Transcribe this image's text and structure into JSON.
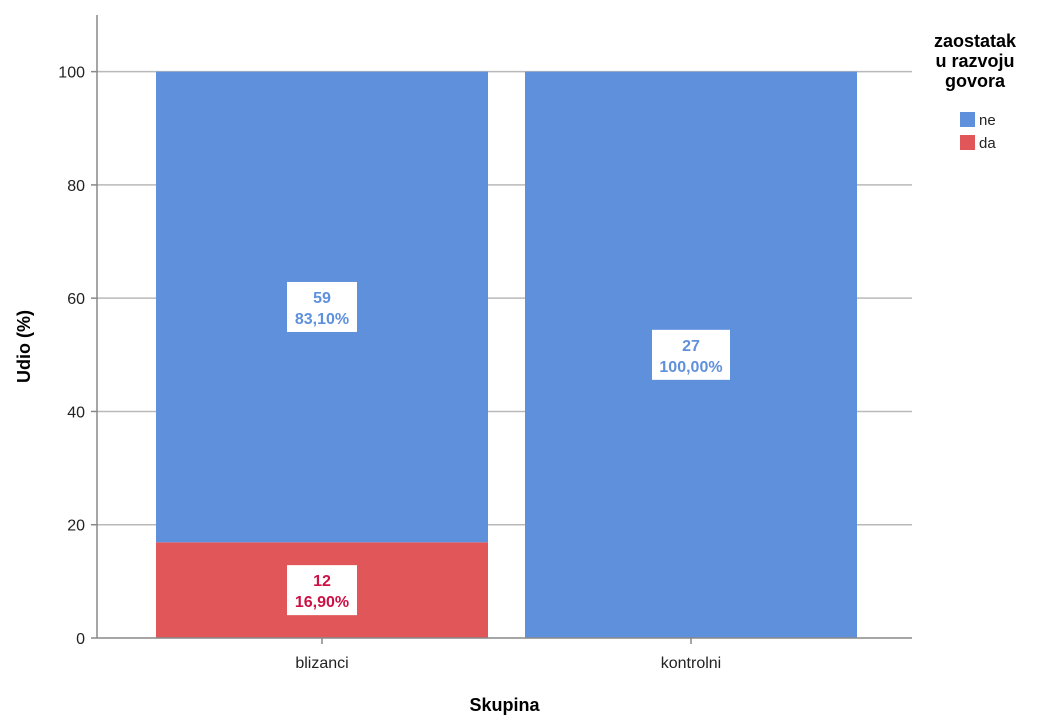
{
  "chart_data": {
    "type": "bar",
    "stacked": true,
    "xlabel": "Skupina",
    "ylabel": "Udio (%)",
    "ylim": [
      0,
      110
    ],
    "yticks": [
      0,
      20,
      40,
      60,
      80,
      100
    ],
    "grid": "horizontal",
    "categories": [
      "blizanci",
      "kontrolni"
    ],
    "legend": {
      "title": [
        "zaostatak",
        "u razvoju",
        "govora"
      ],
      "placement": "top-right"
    },
    "series": [
      {
        "name": "da",
        "color": "#e15759",
        "label_color": "#cc1144",
        "values": [
          16.9,
          0
        ],
        "counts": [
          "12",
          null
        ],
        "percent_labels": [
          "16,90%",
          null
        ]
      },
      {
        "name": "ne",
        "color": "#5f90dc",
        "label_color": "#5f90dc",
        "values": [
          83.1,
          100
        ],
        "counts": [
          "59",
          "27"
        ],
        "percent_labels": [
          "83,10%",
          "100,00%"
        ]
      }
    ]
  }
}
